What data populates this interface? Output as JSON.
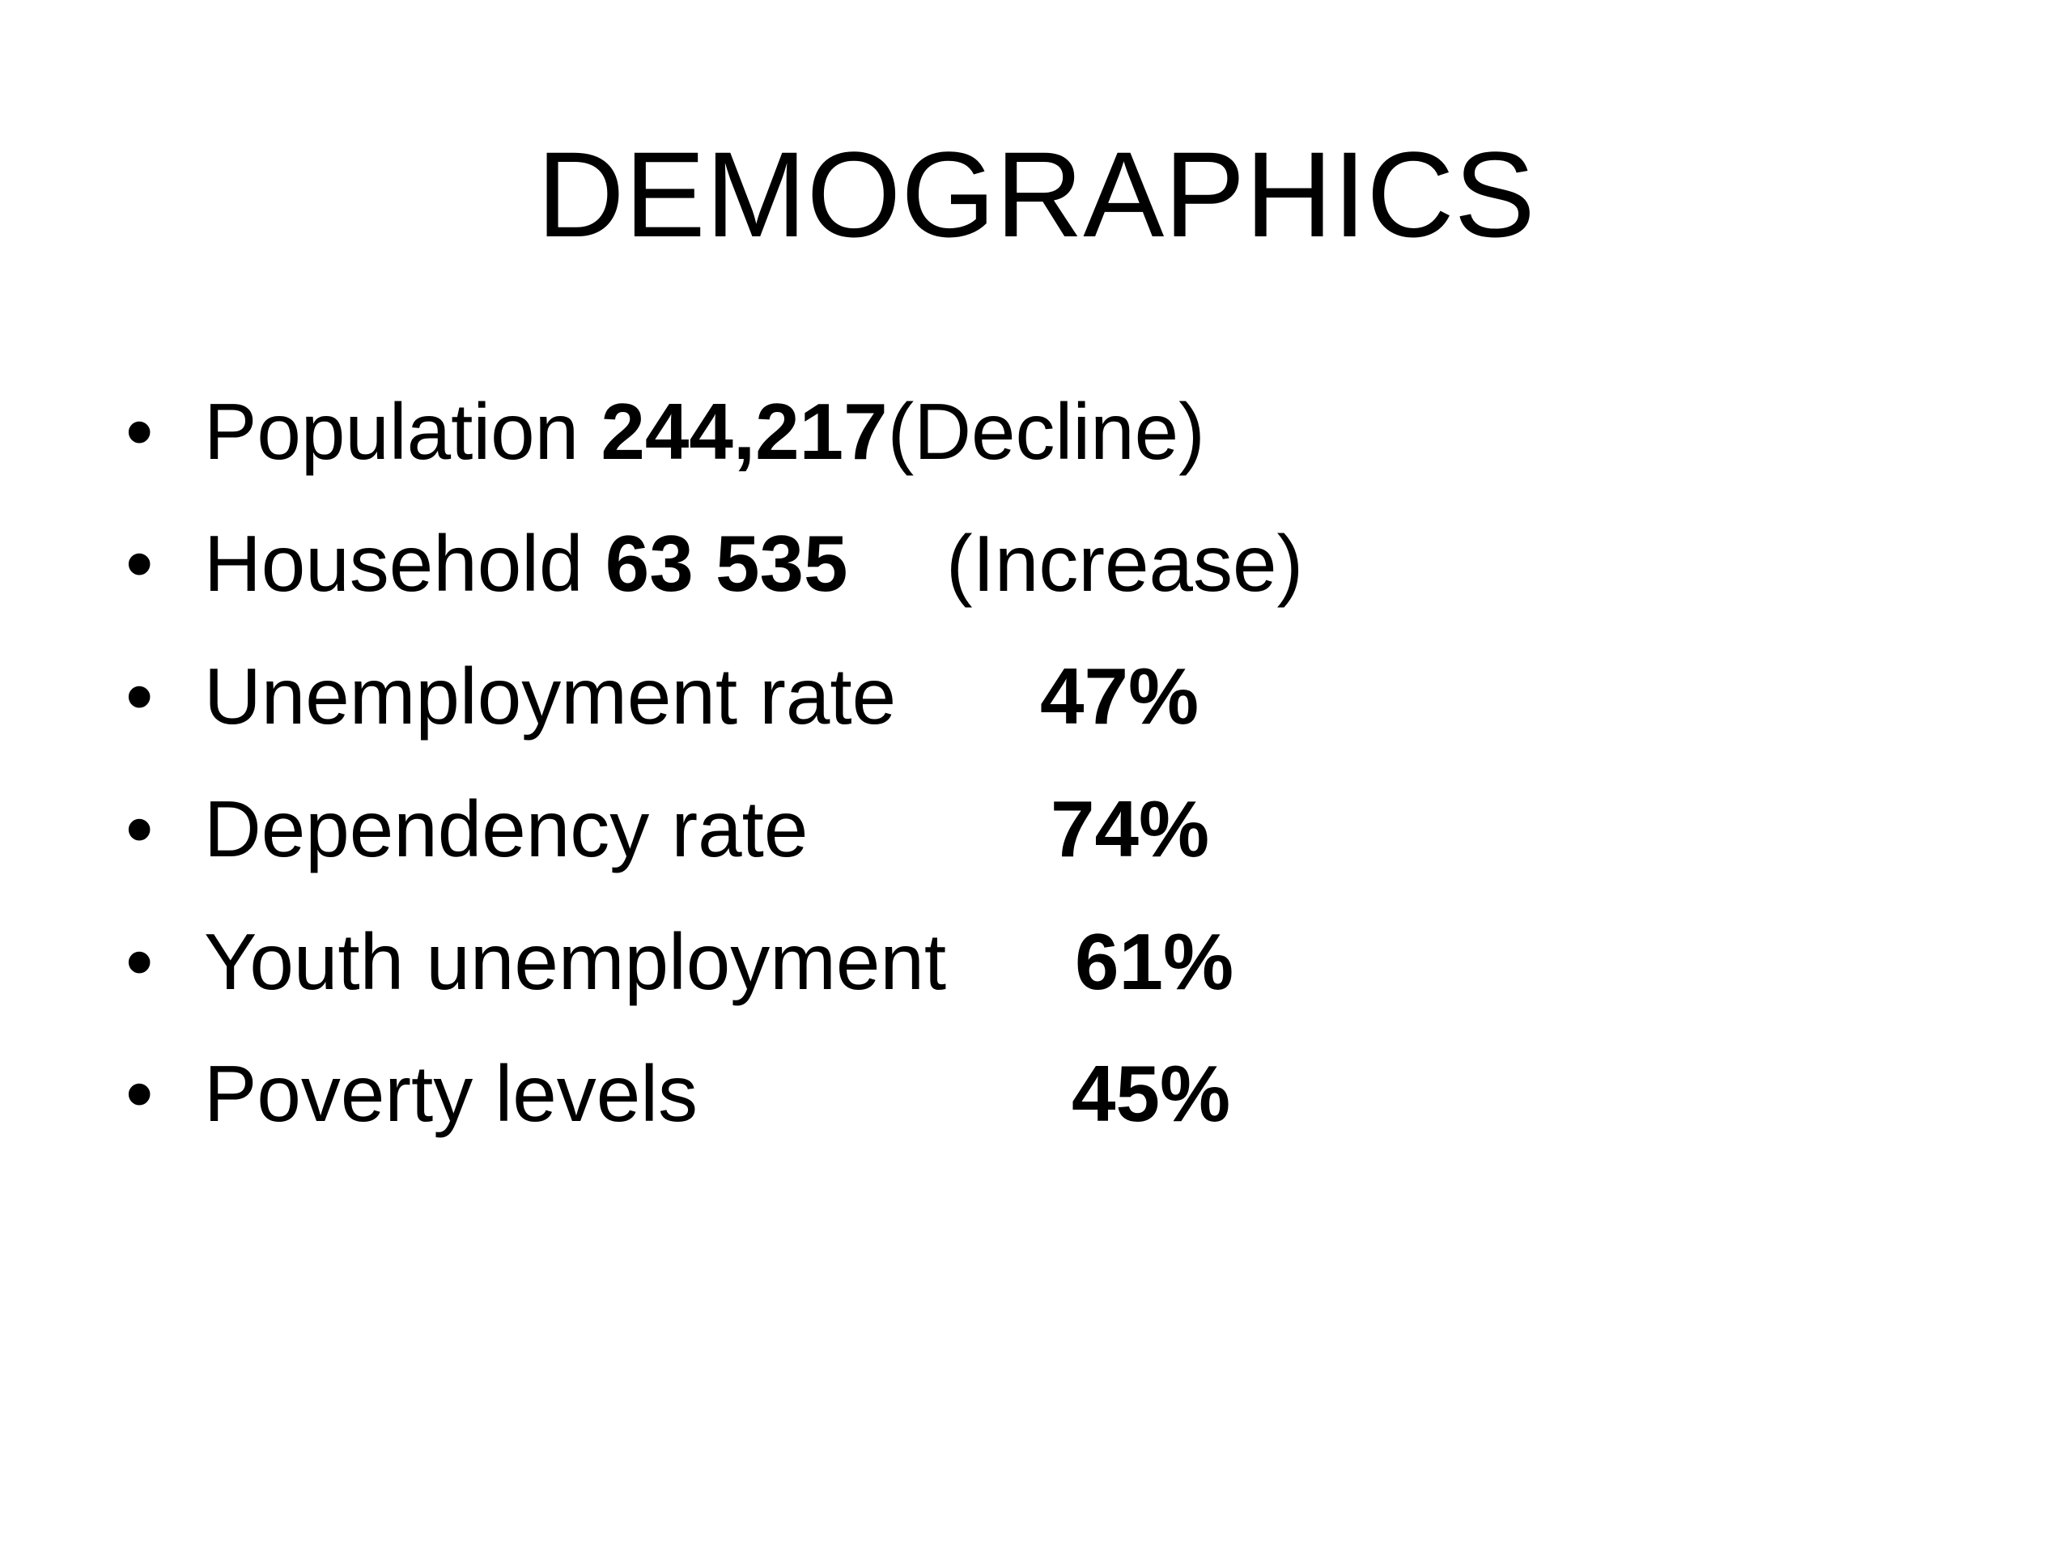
{
  "title": "DEMOGRAPHICS",
  "items": [
    {
      "label": "Population",
      "value": "244,217",
      "note": "(Decline)"
    },
    {
      "label": "Household",
      "value": "63 535",
      "note": "(Increase)"
    },
    {
      "label": "Unemployment rate",
      "value": "47%"
    },
    {
      "label": "Dependency rate",
      "value": "74%"
    },
    {
      "label": "Youth unemployment",
      "value": "61%"
    },
    {
      "label": "Poverty levels",
      "value": "45%"
    }
  ]
}
